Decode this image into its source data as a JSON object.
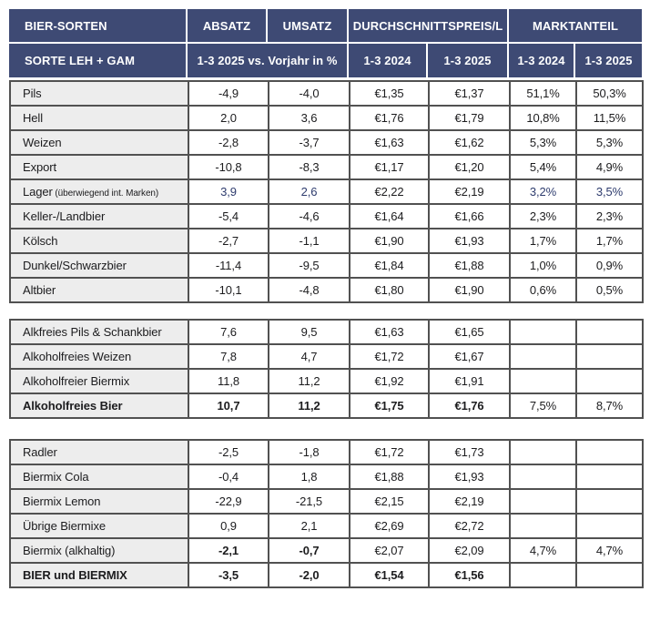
{
  "chart_data": {
    "type": "table",
    "title": "Bier-Sorten LEH + GAM: Absatz, Umsatz, Durchschnittspreis/L, Marktanteil",
    "header": {
      "row1": [
        "BIER-SORTEN",
        "ABSATZ",
        "UMSATZ",
        "DURCHSCHNITTSPREIS/L",
        "MARKTANTEIL"
      ],
      "row2": [
        "SORTE LEH + GAM",
        "1-3 2025 vs. Vorjahr in %",
        "1-3 2024",
        "1-3 2025",
        "1-3 2024",
        "1-3 2025"
      ]
    },
    "column_keys": [
      "sorte",
      "absatz_vs_vorjahr_pct",
      "umsatz_vs_vorjahr_pct",
      "preis_1_3_2024",
      "preis_1_3_2025",
      "marktanteil_1_3_2024",
      "marktanteil_1_3_2025"
    ],
    "blocks": [
      {
        "rows": [
          {
            "label": "Pils",
            "note": "",
            "values": [
              "-4,9",
              "-4,0",
              "€1,35",
              "€1,37",
              "51,1%",
              "50,3%"
            ],
            "bold_label": false,
            "bold_values": [],
            "accent_values": []
          },
          {
            "label": "Hell",
            "note": "",
            "values": [
              "2,0",
              "3,6",
              "€1,76",
              "€1,79",
              "10,8%",
              "11,5%"
            ],
            "bold_label": false,
            "bold_values": [],
            "accent_values": []
          },
          {
            "label": "Weizen",
            "note": "",
            "values": [
              "-2,8",
              "-3,7",
              "€1,63",
              "€1,62",
              "5,3%",
              "5,3%"
            ],
            "bold_label": false,
            "bold_values": [],
            "accent_values": []
          },
          {
            "label": "Export",
            "note": "",
            "values": [
              "-10,8",
              "-8,3",
              "€1,17",
              "€1,20",
              "5,4%",
              "4,9%"
            ],
            "bold_label": false,
            "bold_values": [],
            "accent_values": []
          },
          {
            "label": "Lager",
            "note": "(überwiegend int. Marken)",
            "values": [
              "3,9",
              "2,6",
              "€2,22",
              "€2,19",
              "3,2%",
              "3,5%"
            ],
            "bold_label": false,
            "bold_values": [],
            "accent_values": [
              0,
              1,
              4,
              5
            ]
          },
          {
            "label": "Keller-/Landbier",
            "note": "",
            "values": [
              "-5,4",
              "-4,6",
              "€1,64",
              "€1,66",
              "2,3%",
              "2,3%"
            ],
            "bold_label": false,
            "bold_values": [],
            "accent_values": []
          },
          {
            "label": "Kölsch",
            "note": "",
            "values": [
              "-2,7",
              "-1,1",
              "€1,90",
              "€1,93",
              "1,7%",
              "1,7%"
            ],
            "bold_label": false,
            "bold_values": [],
            "accent_values": []
          },
          {
            "label": "Dunkel/Schwarzbier",
            "note": "",
            "values": [
              "-11,4",
              "-9,5",
              "€1,84",
              "€1,88",
              "1,0%",
              "0,9%"
            ],
            "bold_label": false,
            "bold_values": [],
            "accent_values": []
          },
          {
            "label": "Altbier",
            "note": "",
            "values": [
              "-10,1",
              "-4,8",
              "€1,80",
              "€1,90",
              "0,6%",
              "0,5%"
            ],
            "bold_label": false,
            "bold_values": [],
            "accent_values": []
          }
        ]
      },
      {
        "rows": [
          {
            "label": "Alkfreies Pils & Schankbier",
            "note": "",
            "values": [
              "7,6",
              "9,5",
              "€1,63",
              "€1,65",
              "",
              ""
            ],
            "bold_label": false,
            "bold_values": [],
            "accent_values": []
          },
          {
            "label": "Alkoholfreies Weizen",
            "note": "",
            "values": [
              "7,8",
              "4,7",
              "€1,72",
              "€1,67",
              "",
              ""
            ],
            "bold_label": false,
            "bold_values": [],
            "accent_values": []
          },
          {
            "label": "Alkoholfreier Biermix",
            "note": "",
            "values": [
              "11,8",
              "11,2",
              "€1,92",
              "€1,91",
              "",
              ""
            ],
            "bold_label": false,
            "bold_values": [],
            "accent_values": []
          },
          {
            "label": "Alkoholfreies Bier",
            "note": "",
            "values": [
              "10,7",
              "11,2",
              "€1,75",
              "€1,76",
              "7,5%",
              "8,7%"
            ],
            "bold_label": true,
            "bold_values": [
              0,
              1,
              2,
              3
            ],
            "accent_values": []
          }
        ]
      },
      {
        "rows": [
          {
            "label": "Radler",
            "note": "",
            "values": [
              "-2,5",
              "-1,8",
              "€1,72",
              "€1,73",
              "",
              ""
            ],
            "bold_label": false,
            "bold_values": [],
            "accent_values": []
          },
          {
            "label": "Biermix Cola",
            "note": "",
            "values": [
              "-0,4",
              "1,8",
              "€1,88",
              "€1,93",
              "",
              ""
            ],
            "bold_label": false,
            "bold_values": [],
            "accent_values": []
          },
          {
            "label": "Biermix Lemon",
            "note": "",
            "values": [
              "-22,9",
              "-21,5",
              "€2,15",
              "€2,19",
              "",
              ""
            ],
            "bold_label": false,
            "bold_values": [],
            "accent_values": []
          },
          {
            "label": "Übrige Biermixe",
            "note": "",
            "values": [
              "0,9",
              "2,1",
              "€2,69",
              "€2,72",
              "",
              ""
            ],
            "bold_label": false,
            "bold_values": [],
            "accent_values": []
          },
          {
            "label": "Biermix (alkhaltig)",
            "note": "",
            "values": [
              "-2,1",
              "-0,7",
              "€2,07",
              "€2,09",
              "4,7%",
              "4,7%"
            ],
            "bold_label": false,
            "bold_values": [
              0,
              1
            ],
            "accent_values": []
          },
          {
            "label": "BIER und BIERMIX",
            "note": "",
            "values": [
              "-3,5",
              "-2,0",
              "€1,54",
              "€1,56",
              "",
              ""
            ],
            "bold_label": true,
            "bold_values": [
              0,
              1,
              2,
              3
            ],
            "accent_values": []
          }
        ]
      }
    ]
  },
  "colors": {
    "header_bg": "#3e4a74",
    "header_text": "#ffffff",
    "label_cell_bg": "#ededed",
    "accent_text": "#2e3c6e",
    "body_text": "#1c1c1e",
    "border": "#515151"
  }
}
